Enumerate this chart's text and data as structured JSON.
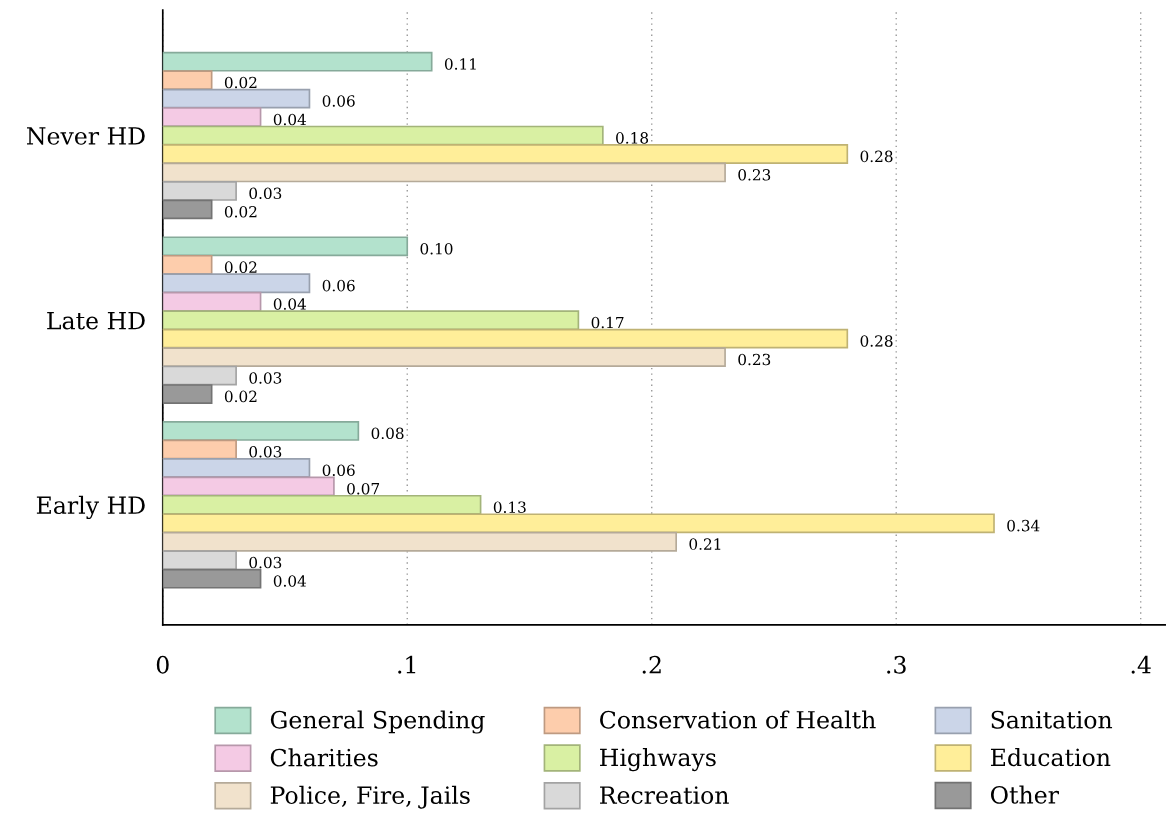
{
  "chart_data": {
    "type": "bar",
    "orientation": "horizontal",
    "categories": [
      "Never HD",
      "Late HD",
      "Early HD"
    ],
    "series": [
      {
        "name": "General Spending",
        "color": "#b3e2cd",
        "values": [
          0.11,
          0.1,
          0.08
        ],
        "value_labels": [
          "0.11",
          "0.10",
          "0.08"
        ]
      },
      {
        "name": "Conservation of Health",
        "color": "#fdcdac",
        "values": [
          0.02,
          0.02,
          0.03
        ],
        "value_labels": [
          "0.02",
          "0.02",
          "0.03"
        ]
      },
      {
        "name": "Sanitation",
        "color": "#cbd5e8",
        "values": [
          0.06,
          0.06,
          0.06
        ],
        "value_labels": [
          "0.06",
          "0.06",
          "0.06"
        ]
      },
      {
        "name": "Charities",
        "color": "#f4cae4",
        "values": [
          0.04,
          0.04,
          0.07
        ],
        "value_labels": [
          "0.04",
          "0.04",
          "0.07"
        ]
      },
      {
        "name": "Highways",
        "color": "#d9f0a3",
        "values": [
          0.18,
          0.17,
          0.13
        ],
        "value_labels": [
          "0.18",
          "0.17",
          "0.13"
        ]
      },
      {
        "name": "Education",
        "color": "#ffee99",
        "values": [
          0.28,
          0.28,
          0.34
        ],
        "value_labels": [
          "0.28",
          "0.28",
          "0.34"
        ]
      },
      {
        "name": "Police, Fire, Jails",
        "color": "#f1e2cc",
        "values": [
          0.23,
          0.23,
          0.21
        ],
        "value_labels": [
          "0.23",
          "0.23",
          "0.21"
        ]
      },
      {
        "name": "Recreation",
        "color": "#d9d9d9",
        "values": [
          0.03,
          0.03,
          0.03
        ],
        "value_labels": [
          "0.03",
          "0.03",
          "0.03"
        ]
      },
      {
        "name": "Other",
        "color": "#999999",
        "values": [
          0.02,
          0.02,
          0.04
        ],
        "value_labels": [
          "0.02",
          "0.02",
          "0.04"
        ]
      }
    ],
    "xlim": [
      0,
      0.41
    ],
    "xticks": [
      {
        "value": 0,
        "label": "0"
      },
      {
        "value": 0.1,
        "label": ".1"
      },
      {
        "value": 0.2,
        "label": ".2"
      },
      {
        "value": 0.3,
        "label": ".3"
      },
      {
        "value": 0.4,
        "label": ".4"
      }
    ],
    "grid": "x",
    "legend": "bottom"
  }
}
